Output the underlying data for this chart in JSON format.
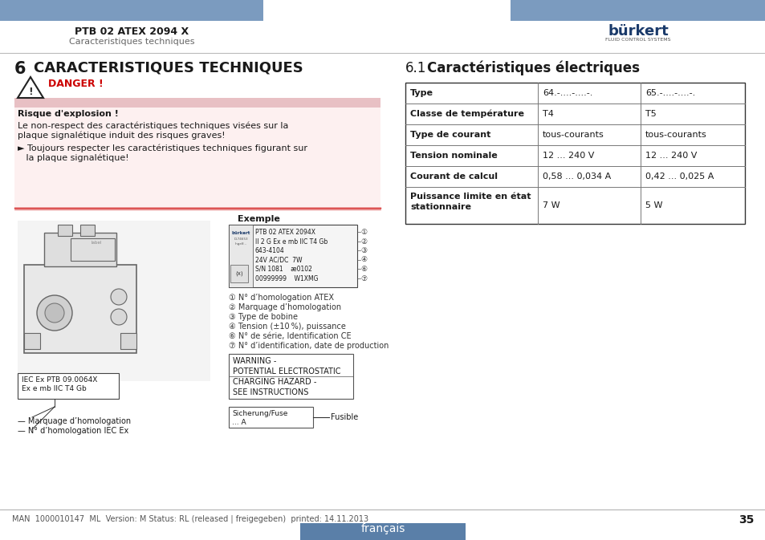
{
  "page_title": "PTB 02 ATEX 2094 X",
  "page_subtitle": "Caracteristiques techniques",
  "header_bar_color": "#7b9bbf",
  "section_number": "6",
  "section_title": "CARACTERISTIQUES TECHNIQUES",
  "danger_label": "DANGER !",
  "danger_bar_color": "#e8c0c4",
  "risk_title": "Risque d'explosion !",
  "risk_body_1": "Le non-respect des caractéristiques techniques visées sur la",
  "risk_body_2": "plaque signalétique induit des risques graves!",
  "risk_bullet_1": "► Toujours respecter les caractéristiques techniques figurant sur",
  "risk_bullet_2": "   la plaque signalétique!",
  "sub_section": "6.1",
  "sub_section_title": "Caractéristiques électriques",
  "table_rows": [
    [
      "Type",
      "64.-....-....-.",
      "65.-....-....-."
    ],
    [
      "Classe de température",
      "T4",
      "T5"
    ],
    [
      "Type de courant",
      "tous-courants",
      "tous-courants"
    ],
    [
      "Tension nominale",
      "12 ... 240 V",
      "12 ... 240 V"
    ],
    [
      "Courant de calcul",
      "0,58 ... 0,034 A",
      "0,42 ... 0,025 A"
    ],
    [
      "Puissance limite en état\nstationnaire",
      "7 W",
      "5 W"
    ]
  ],
  "example_label": "Exemple",
  "plate_lines": [
    "PTB 02 ATEX 2094X",
    "II 2 G Ex e mb IIC T4 Gb",
    "643-4104",
    "24V AC/DC  7W",
    "S/N 1081    æ0102",
    "00999999    W1XMG"
  ],
  "circle_nums": [
    "①",
    "②",
    "③",
    "④",
    "⑥",
    "⑦"
  ],
  "numbered_items": [
    "① N° d’homologation ATEX",
    "② Marquage d’homologation",
    "③ Type de bobine",
    "④ Tension (±10 %), puissance",
    "⑥ N° de série, Identification CE",
    "⑦ N° d’identification, date de production"
  ],
  "warning_lines": [
    "WARNING -",
    "POTENTIAL ELECTROSTATIC",
    "CHARGING HAZARD -",
    "SEE INSTRUCTIONS"
  ],
  "fuse_label": "Sicherung/Fuse",
  "fuse_value": "Fusible",
  "fuse_amps": "... A",
  "iec_lines": [
    "IEC Ex PTB 09.0064X",
    "Ex e mb IIC T4 Gb"
  ],
  "marking_lines": [
    "— Marquage d’homologation",
    "— N° d’homologation IEC Ex"
  ],
  "footer_text": "MAN  1000010147  ML  Version: M Status: RL (released | freigegeben)  printed: 14.11.2013",
  "page_number": "35",
  "francais_bar_color": "#5a7fa8",
  "francais_text": "français",
  "bg_color": "#ffffff"
}
